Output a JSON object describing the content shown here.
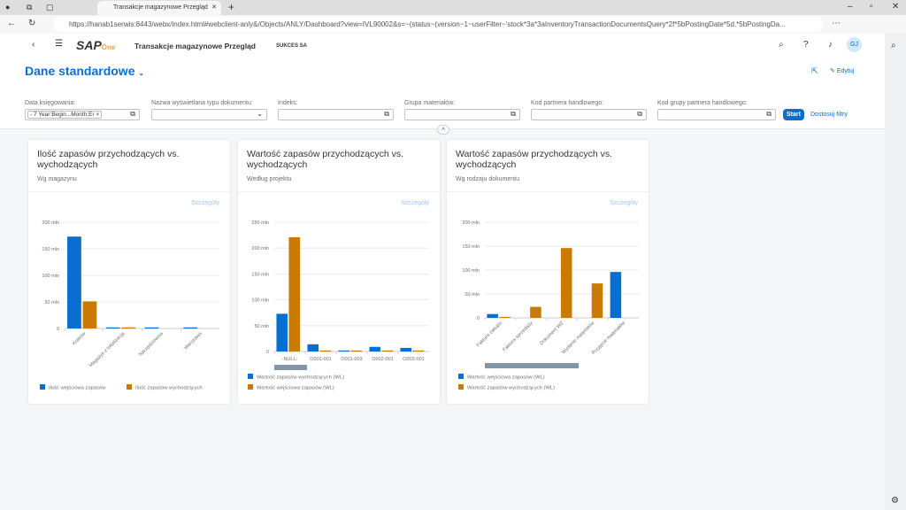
{
  "browser": {
    "tab_title": "Transakcje magazynowe Przegląd",
    "url": "https://hanab1serwis:8443/webx/index.html#webclient-anly&/Objects/ANLY/Dashboard?view=IVL90002&s=~(status~(version~1~userFilter~'stock*3a*3aInventoryTransactionDocumentsQuery*2f*5bPostingDate*5d.*5bPostingDa..."
  },
  "header": {
    "logo": "SAP Business One",
    "app_title": "Transakcje magazynowe Przegląd",
    "company": "SUKCES SA",
    "avatar": "GJ"
  },
  "page": {
    "variant": "Dane standardowe",
    "edit_label": "Edytuj"
  },
  "filters": [
    {
      "label": "Data księgowania:",
      "value": "- 7 Year:Begin...Month:Er"
    },
    {
      "label": "Nazwa wyświetlana typu dokumentu:",
      "value": ""
    },
    {
      "label": "Indeks:",
      "value": ""
    },
    {
      "label": "Grupa materiałów:",
      "value": ""
    },
    {
      "label": "Kod partnera handlowego:",
      "value": ""
    },
    {
      "label": "Kod grupy partnera handlowego:",
      "value": ""
    }
  ],
  "filter_actions": {
    "start": "Start",
    "adapt": "Dostosuj filtry"
  },
  "colors": {
    "blue": "#0a6ed1",
    "orange": "#c87b00",
    "accent": "#0a6ed1"
  },
  "cards": [
    {
      "title": "Ilość zapasów przychodzących vs. wychodzących",
      "subtitle": "Wg magazynu",
      "details": "Szczegóły"
    },
    {
      "title": "Wartość zapasów przychodzących vs. wychodzących",
      "subtitle": "Według projektu",
      "details": "Szczegóły"
    },
    {
      "title": "Wartość zapasów przychodzących vs. wychodzących",
      "subtitle": "Wg rodzaju dokumentu",
      "details": "Szczegóły"
    }
  ],
  "chart_data": [
    {
      "type": "bar",
      "categories": [
        "Kraków",
        "Magazyn z lokalizacją",
        "Narzędziownia",
        "Warszawa"
      ],
      "ylim": [
        0,
        200
      ],
      "yticks": [
        "0",
        "50 mln",
        "100 mln",
        "150 mln",
        "200 mln"
      ],
      "tick_values": [
        0,
        50,
        100,
        150,
        200
      ],
      "rotate_labels": true,
      "scrollbar": false,
      "series": [
        {
          "name": "Ilość wejściowa zapasów",
          "color": "#0a6ed1",
          "values": [
            173,
            2,
            2,
            2
          ]
        },
        {
          "name": "Ilość zapasów wychodzących",
          "color": "#c87b00",
          "values": [
            51,
            2,
            0,
            0
          ]
        }
      ],
      "legend": "bottom"
    },
    {
      "type": "bar",
      "categories": [
        "-NULL-",
        "O001-001",
        "O001-003",
        "O002-001",
        "O003-001"
      ],
      "ylim": [
        0,
        250
      ],
      "yticks": [
        "0",
        "50 mln",
        "100 mln",
        "150 mln",
        "200 mln",
        "250 mln"
      ],
      "tick_values": [
        0,
        50,
        100,
        150,
        200,
        250
      ],
      "rotate_labels": false,
      "scrollbar": true,
      "series": [
        {
          "name": "Wartość zapasów wychodzących (WL)",
          "color": "#0a6ed1",
          "values": [
            73,
            14,
            2,
            9,
            7
          ]
        },
        {
          "name": "Wartość wejściowa zapasów (WL)",
          "color": "#c87b00",
          "values": [
            221,
            2,
            2,
            2,
            2
          ]
        }
      ],
      "legend": "bottom"
    },
    {
      "type": "bar",
      "categories": [
        "Faktura zakupu",
        "Faktura sprzedaży",
        "Dokument WZ",
        "Wydanie materiałów",
        "Przyjęcie materiałów"
      ],
      "ylim": [
        0,
        200
      ],
      "yticks": [
        "0",
        "50 mln",
        "100 mln",
        "150 mln",
        "200 mln"
      ],
      "tick_values": [
        0,
        50,
        100,
        150,
        200
      ],
      "rotate_labels": true,
      "scrollbar": true,
      "series": [
        {
          "name": "Wartość wejściowa zapasów (WL)",
          "color": "#0a6ed1",
          "values": [
            8,
            0,
            0,
            0,
            96
          ]
        },
        {
          "name": "Wartość zapasów wychodzących (WL)",
          "color": "#c87b00",
          "values": [
            2,
            23,
            146,
            72,
            0
          ]
        }
      ],
      "legend": "bottom"
    }
  ]
}
